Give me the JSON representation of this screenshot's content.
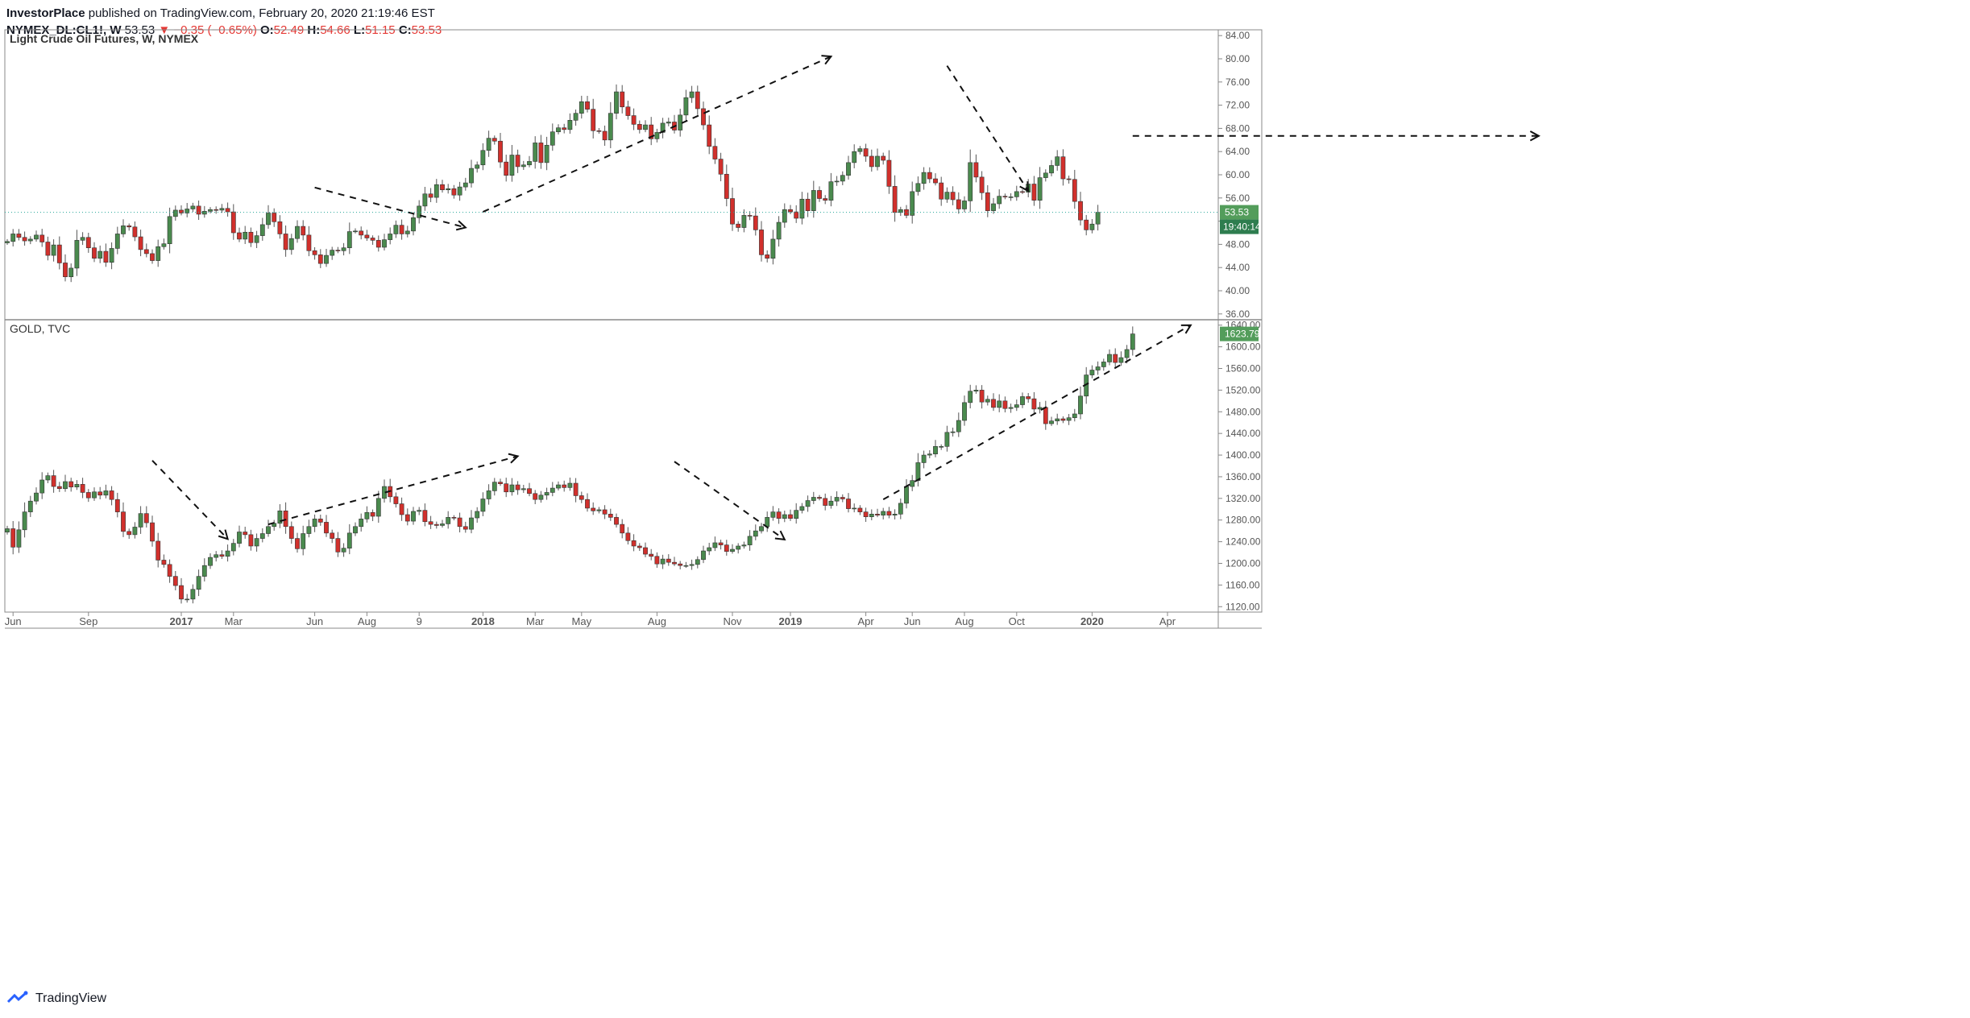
{
  "header": {
    "publisher": "InvestorPlace",
    "published_text": "published on TradingView.com, February 20, 2020 21:19:46 EST",
    "symbol": "NYMEX_DL:CL1!, W",
    "last": "53.53",
    "change": "▼ −0.35 (−0.65%)",
    "o_label": "O:",
    "o": "52.49",
    "h_label": "H:",
    "h": "54.66",
    "l_label": "L:",
    "l": "51.15",
    "c_label": "C:",
    "c": "53.53"
  },
  "footer": {
    "brand": "TradingView"
  },
  "colors": {
    "up": "#4a8a4e",
    "down": "#d1302c",
    "wick": "#555555",
    "badge_green": "#539d5b",
    "badge_timer": "#2e7d4f",
    "grid": "#e6e6e6",
    "axis_text": "#555555",
    "dotted_line": "#26a69a"
  },
  "time_axis": {
    "labels": [
      "Jun",
      "Sep",
      "2017",
      "Mar",
      "Jun",
      "Aug",
      "9",
      "2018",
      "Mar",
      "May",
      "Aug",
      "Nov",
      "2019",
      "Apr",
      "Jun",
      "Aug",
      "Oct",
      "2020",
      "Apr"
    ],
    "bold": [
      false,
      false,
      true,
      false,
      false,
      false,
      false,
      true,
      false,
      false,
      false,
      false,
      true,
      false,
      false,
      false,
      false,
      true,
      false
    ],
    "weeks": [
      1,
      14,
      30,
      39,
      53,
      62,
      71,
      82,
      91,
      99,
      112,
      125,
      135,
      148,
      156,
      165,
      174,
      187,
      200
    ]
  },
  "chart_data": [
    {
      "type": "candlestick",
      "title": "Light Crude Oil Futures, W, NYMEX",
      "ylim": [
        35,
        85
      ],
      "yticks": [
        "84.00",
        "80.00",
        "76.00",
        "72.00",
        "68.00",
        "64.00",
        "60.00",
        "56.00",
        "52.00",
        "48.00",
        "44.00",
        "40.00",
        "36.00"
      ],
      "last_price": "53.53",
      "countdown": "19:40:14",
      "closes": [
        48.5,
        49.8,
        49.2,
        48.6,
        48.9,
        49.6,
        48.4,
        46.1,
        47.9,
        44.8,
        42.4,
        43.9,
        48.7,
        49.2,
        47.4,
        45.6,
        46.8,
        44.9,
        47.3,
        49.8,
        51.2,
        51.0,
        49.3,
        47.1,
        46.4,
        45.2,
        47.6,
        48.1,
        52.8,
        53.9,
        53.4,
        54.1,
        54.6,
        53.2,
        53.7,
        54.0,
        53.9,
        54.2,
        53.6,
        50.0,
        48.9,
        50.1,
        48.3,
        49.5,
        51.4,
        53.4,
        51.9,
        49.8,
        47.1,
        49.0,
        51.1,
        49.6,
        46.9,
        46.2,
        44.7,
        46.1,
        47.0,
        46.9,
        47.4,
        50.2,
        50.3,
        49.6,
        49.1,
        48.7,
        47.5,
        48.8,
        49.8,
        51.3,
        49.8,
        50.3,
        52.6,
        54.6,
        56.7,
        56.1,
        58.3,
        57.4,
        57.6,
        56.5,
        57.9,
        58.6,
        61.1,
        61.7,
        64.2,
        66.3,
        65.8,
        62.2,
        59.9,
        63.4,
        61.4,
        61.7,
        62.3,
        65.5,
        62.1,
        65.1,
        67.4,
        68.1,
        67.8,
        69.4,
        70.6,
        72.6,
        71.3,
        67.6,
        67.5,
        66.0,
        70.6,
        74.3,
        71.7,
        70.2,
        68.7,
        67.8,
        68.6,
        66.2,
        67.3,
        68.9,
        69.1,
        67.7,
        70.3,
        73.3,
        74.3,
        71.4,
        68.6,
        64.9,
        62.7,
        60.1,
        55.9,
        51.5,
        50.9,
        53.0,
        52.9,
        50.5,
        46.2,
        45.6,
        48.9,
        51.8,
        54.0,
        53.6,
        52.5,
        55.8,
        53.8,
        57.3,
        55.9,
        55.6,
        58.8,
        58.9,
        59.9,
        62.1,
        64.0,
        64.5,
        63.2,
        61.4,
        63.2,
        62.5,
        58.0,
        53.5,
        54.0,
        53.0,
        57.1,
        58.5,
        60.4,
        59.3,
        58.6,
        55.8,
        57.0,
        55.7,
        54.1,
        55.5,
        62.1,
        59.6,
        56.9,
        53.8,
        55.0,
        56.3,
        56.2,
        56.2,
        57.1,
        57.0,
        58.4,
        55.6,
        59.5,
        60.3,
        61.6,
        63.1,
        59.3,
        59.2,
        55.4,
        52.2,
        50.5,
        51.5,
        53.53
      ],
      "shapes": [
        {
          "style": "dashed-arrow",
          "from": {
            "week": 53,
            "price": 57.8
          },
          "to": {
            "week": 79,
            "price": 50.9
          }
        },
        {
          "style": "dashed-arrow",
          "from": {
            "week": 82,
            "price": 53.6
          },
          "to": {
            "week": 142,
            "price": 80.4
          }
        },
        {
          "style": "dashed-arrow",
          "from": {
            "week": 162,
            "price": 78.8
          },
          "to": {
            "week": 176,
            "price": 57.2
          }
        },
        {
          "style": "dashed-arrow",
          "from": {
            "week": 194,
            "price": 66.7
          },
          "to": {
            "week": 264,
            "price": 66.7
          }
        }
      ]
    },
    {
      "type": "candlestick",
      "title": "GOLD, TVC",
      "ylim": [
        1110,
        1650
      ],
      "yticks": [
        "1640.00",
        "1600.00",
        "1560.00",
        "1520.00",
        "1480.00",
        "1440.00",
        "1400.00",
        "1360.00",
        "1320.00",
        "1280.00",
        "1240.00",
        "1200.00",
        "1160.00",
        "1120.00"
      ],
      "last_price": "1623.79",
      "closes": [
        1264,
        1230,
        1262,
        1295,
        1315,
        1330,
        1354,
        1362,
        1342,
        1338,
        1351,
        1341,
        1346,
        1331,
        1321,
        1332,
        1326,
        1334,
        1318,
        1295,
        1259,
        1253,
        1267,
        1292,
        1275,
        1241,
        1206,
        1198,
        1176,
        1159,
        1134,
        1134,
        1152,
        1176,
        1196,
        1211,
        1216,
        1213,
        1223,
        1237,
        1258,
        1253,
        1232,
        1246,
        1255,
        1268,
        1274,
        1297,
        1268,
        1246,
        1227,
        1255,
        1268,
        1282,
        1276,
        1256,
        1246,
        1221,
        1228,
        1256,
        1268,
        1282,
        1294,
        1287,
        1320,
        1342,
        1323,
        1310,
        1290,
        1278,
        1296,
        1298,
        1277,
        1272,
        1270,
        1273,
        1285,
        1284,
        1268,
        1263,
        1284,
        1296,
        1319,
        1334,
        1350,
        1347,
        1332,
        1345,
        1336,
        1338,
        1329,
        1318,
        1326,
        1331,
        1339,
        1345,
        1340,
        1348,
        1325,
        1318,
        1302,
        1297,
        1299,
        1291,
        1285,
        1272,
        1256,
        1242,
        1232,
        1229,
        1217,
        1213,
        1199,
        1208,
        1202,
        1199,
        1196,
        1196,
        1198,
        1207,
        1223,
        1229,
        1238,
        1234,
        1222,
        1226,
        1232,
        1234,
        1250,
        1260,
        1268,
        1285,
        1295,
        1283,
        1290,
        1283,
        1298,
        1305,
        1316,
        1322,
        1320,
        1307,
        1315,
        1322,
        1319,
        1301,
        1302,
        1295,
        1286,
        1291,
        1289,
        1296,
        1289,
        1291,
        1311,
        1342,
        1353,
        1386,
        1400,
        1402,
        1416,
        1416,
        1442,
        1443,
        1464,
        1497,
        1518,
        1520,
        1498,
        1503,
        1488,
        1500,
        1486,
        1488,
        1493,
        1508,
        1504,
        1485,
        1488,
        1458,
        1463,
        1467,
        1464,
        1469,
        1476,
        1509,
        1548,
        1557,
        1563,
        1572,
        1586,
        1571,
        1580,
        1595,
        1623.79
      ],
      "shapes": [
        {
          "style": "dashed-arrow",
          "from": {
            "week": 25,
            "price": 1390
          },
          "to": {
            "week": 38,
            "price": 1245
          }
        },
        {
          "style": "dashed-arrow",
          "from": {
            "week": 45,
            "price": 1272
          },
          "to": {
            "week": 88,
            "price": 1398
          }
        },
        {
          "style": "dashed-arrow",
          "from": {
            "week": 115,
            "price": 1388
          },
          "to": {
            "week": 134,
            "price": 1244
          }
        },
        {
          "style": "dashed-arrow",
          "from": {
            "week": 151,
            "price": 1318
          },
          "to": {
            "week": 204,
            "price": 1640
          }
        }
      ]
    }
  ]
}
